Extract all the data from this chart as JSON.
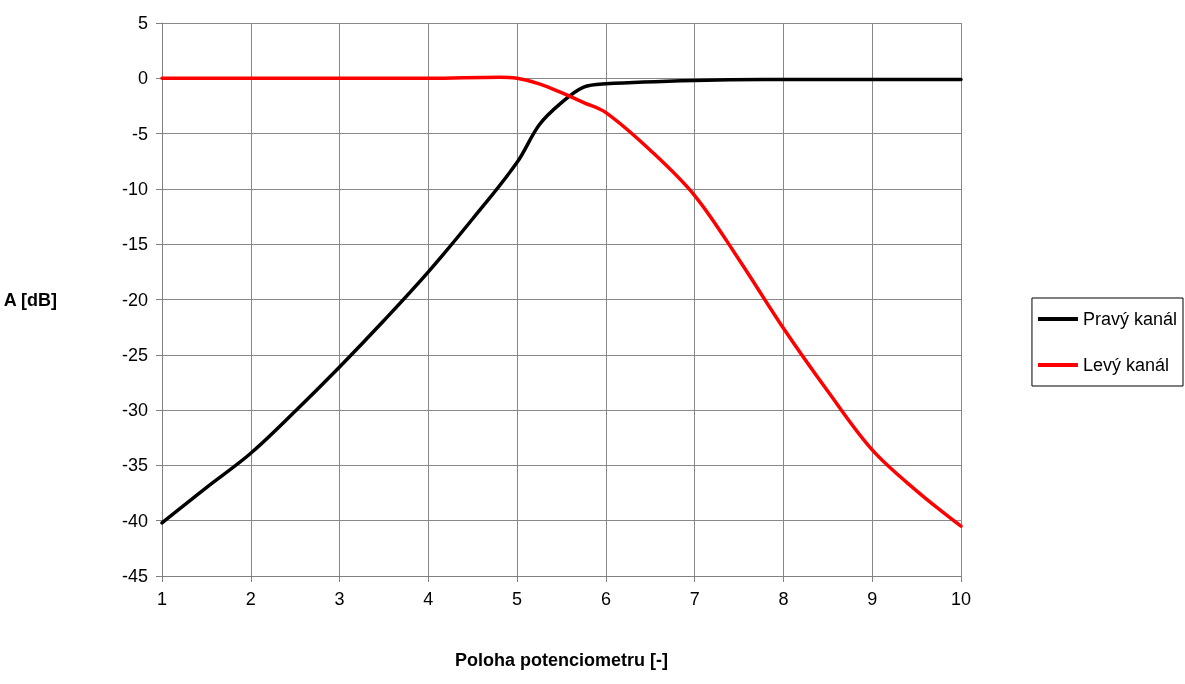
{
  "chart_data": {
    "type": "line",
    "xlabel": "Poloha potenciometru [-]",
    "ylabel": "A [dB]",
    "xlim": [
      1,
      10
    ],
    "xticks": [
      1,
      2,
      3,
      4,
      5,
      6,
      7,
      8,
      9,
      10
    ],
    "ylim": [
      -45,
      5
    ],
    "yticks": [
      -45,
      -40,
      -35,
      -30,
      -25,
      -20,
      -15,
      -10,
      -5,
      0,
      5
    ],
    "grid": true,
    "legend": "right",
    "marker": "none",
    "line_style": "solid",
    "series": [
      {
        "name": "Pravý kanál",
        "color": "#000000",
        "x": [
          1,
          1.5,
          2,
          2.5,
          3,
          3.5,
          4,
          4.5,
          5,
          5.25,
          5.5,
          5.75,
          6,
          7,
          8,
          9,
          10
        ],
        "values": [
          -40.2,
          -37.0,
          -33.9,
          -30.1,
          -26.1,
          -21.9,
          -17.5,
          -12.7,
          -7.6,
          -4.2,
          -2.2,
          -0.8,
          -0.5,
          -0.2,
          -0.1,
          -0.1,
          -0.1
        ]
      },
      {
        "name": "Levý kanál",
        "color": "#ff0000",
        "x": [
          1,
          2,
          3,
          4,
          4.8,
          5,
          5.25,
          5.5,
          5.75,
          6,
          6.5,
          7,
          7.5,
          8,
          8.5,
          9,
          9.5,
          10
        ],
        "values": [
          0,
          0,
          0,
          0,
          0.1,
          0,
          -0.5,
          -1.3,
          -2.2,
          -3.1,
          -6.5,
          -10.6,
          -16.4,
          -22.6,
          -28.3,
          -33.6,
          -37.3,
          -40.5
        ]
      }
    ]
  }
}
